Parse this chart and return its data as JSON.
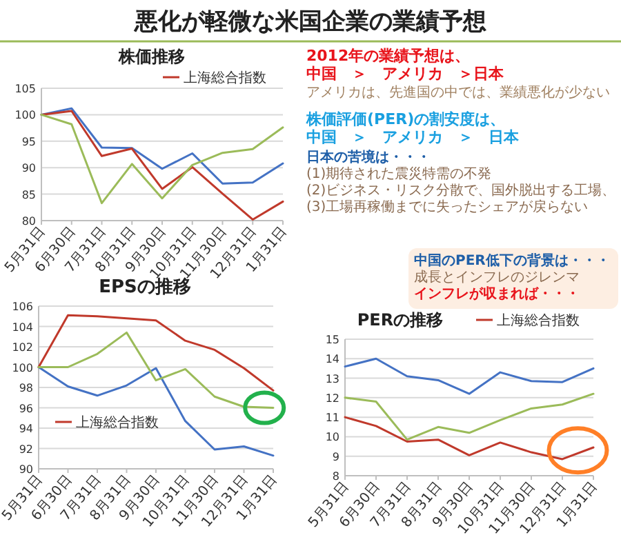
{
  "chart_data": [
    {
      "type": "line",
      "title": "株価推移",
      "categories": [
        "5月31日",
        "6月30日",
        "7月31日",
        "8月31日",
        "9月30日",
        "10月31日",
        "11月30日",
        "12月31日",
        "1月31日"
      ],
      "series": [
        {
          "color": "#4472c4",
          "values": [
            100,
            101.2,
            93.8,
            93.7,
            89.8,
            92.7,
            87.0,
            87.2,
            90.8
          ]
        },
        {
          "name": "上海総合指数",
          "color": "#c0392b",
          "values": [
            100,
            100.7,
            92.2,
            93.6,
            86.0,
            90.1,
            85.1,
            80.2,
            83.6
          ]
        },
        {
          "color": "#9bbb59",
          "values": [
            100,
            98.2,
            83.3,
            90.7,
            84.2,
            90.5,
            92.8,
            93.5,
            97.6
          ]
        }
      ],
      "ylim": [
        80,
        105
      ],
      "yticks": [
        80,
        85,
        90,
        95,
        100,
        105
      ],
      "grid": "y",
      "legend": "top right",
      "marker": "none",
      "line_style": "solid"
    },
    {
      "type": "line",
      "title": "EPSの推移",
      "categories": [
        "5月31日",
        "6月30日",
        "7月31日",
        "8月31日",
        "9月30日",
        "10月31日",
        "11月30日",
        "12月31日",
        "1月31日"
      ],
      "series": [
        {
          "color": "#4472c4",
          "values": [
            100,
            98.1,
            97.2,
            98.2,
            99.9,
            94.7,
            91.9,
            92.2,
            91.3
          ]
        },
        {
          "name": "上海総合指数",
          "color": "#c0392b",
          "values": [
            100,
            105.1,
            105.0,
            104.8,
            104.6,
            102.6,
            101.7,
            99.9,
            97.7
          ]
        },
        {
          "color": "#9bbb59",
          "values": [
            100,
            100,
            101.3,
            103.4,
            98.7,
            99.8,
            97.1,
            96.1,
            96.0
          ]
        }
      ],
      "ylim": [
        90,
        106
      ],
      "yticks": [
        90,
        92,
        94,
        96,
        98,
        100,
        102,
        104,
        106
      ],
      "grid": "y",
      "legend": "bottom left",
      "marker": "none",
      "line_style": "solid"
    },
    {
      "type": "line",
      "title": "PERの推移",
      "categories": [
        "5月31日",
        "6月30日",
        "7月31日",
        "8月31日",
        "9月30日",
        "10月31日",
        "11月30日",
        "12月31日",
        "1月31日"
      ],
      "series": [
        {
          "color": "#4472c4",
          "values": [
            13.6,
            14.0,
            13.1,
            12.9,
            12.2,
            13.3,
            12.85,
            12.8,
            13.5
          ]
        },
        {
          "name": "上海総合指数",
          "color": "#c0392b",
          "values": [
            11.0,
            10.55,
            9.75,
            9.85,
            9.05,
            9.7,
            9.2,
            8.85,
            9.45
          ]
        },
        {
          "color": "#9bbb59",
          "values": [
            12.0,
            11.8,
            9.85,
            10.5,
            10.2,
            10.85,
            11.45,
            11.65,
            12.2
          ]
        }
      ],
      "ylim": [
        8,
        15
      ],
      "yticks": [
        8,
        9,
        10,
        11,
        12,
        13,
        14,
        15
      ],
      "grid": "y",
      "legend": "top right",
      "marker": "none",
      "line_style": "solid"
    },
    {
      "type": "other",
      "title": "悪化が軽微な米国企業の業績予想",
      "annotations": [
        "2012年の業績予想は、",
        "中国　＞　アメリカ　＞日本",
        "アメリカは、先進国の中では、業績悪化が少ない",
        "株価評価(PER)の割安度は、",
        "中国　＞　アメリカ　＞　日本",
        "日本の苦境は・・・",
        "(1)期待された震災特需の不発",
        "(2)ビジネス・リスク分散で、国外脱出する工場、",
        "(3)工場再稼働までに失ったシェアが戻らない",
        "中国のPER低下の背景は・・・",
        "成長とインフレのジレンマ",
        "インフレが収まれば・・・"
      ]
    }
  ]
}
